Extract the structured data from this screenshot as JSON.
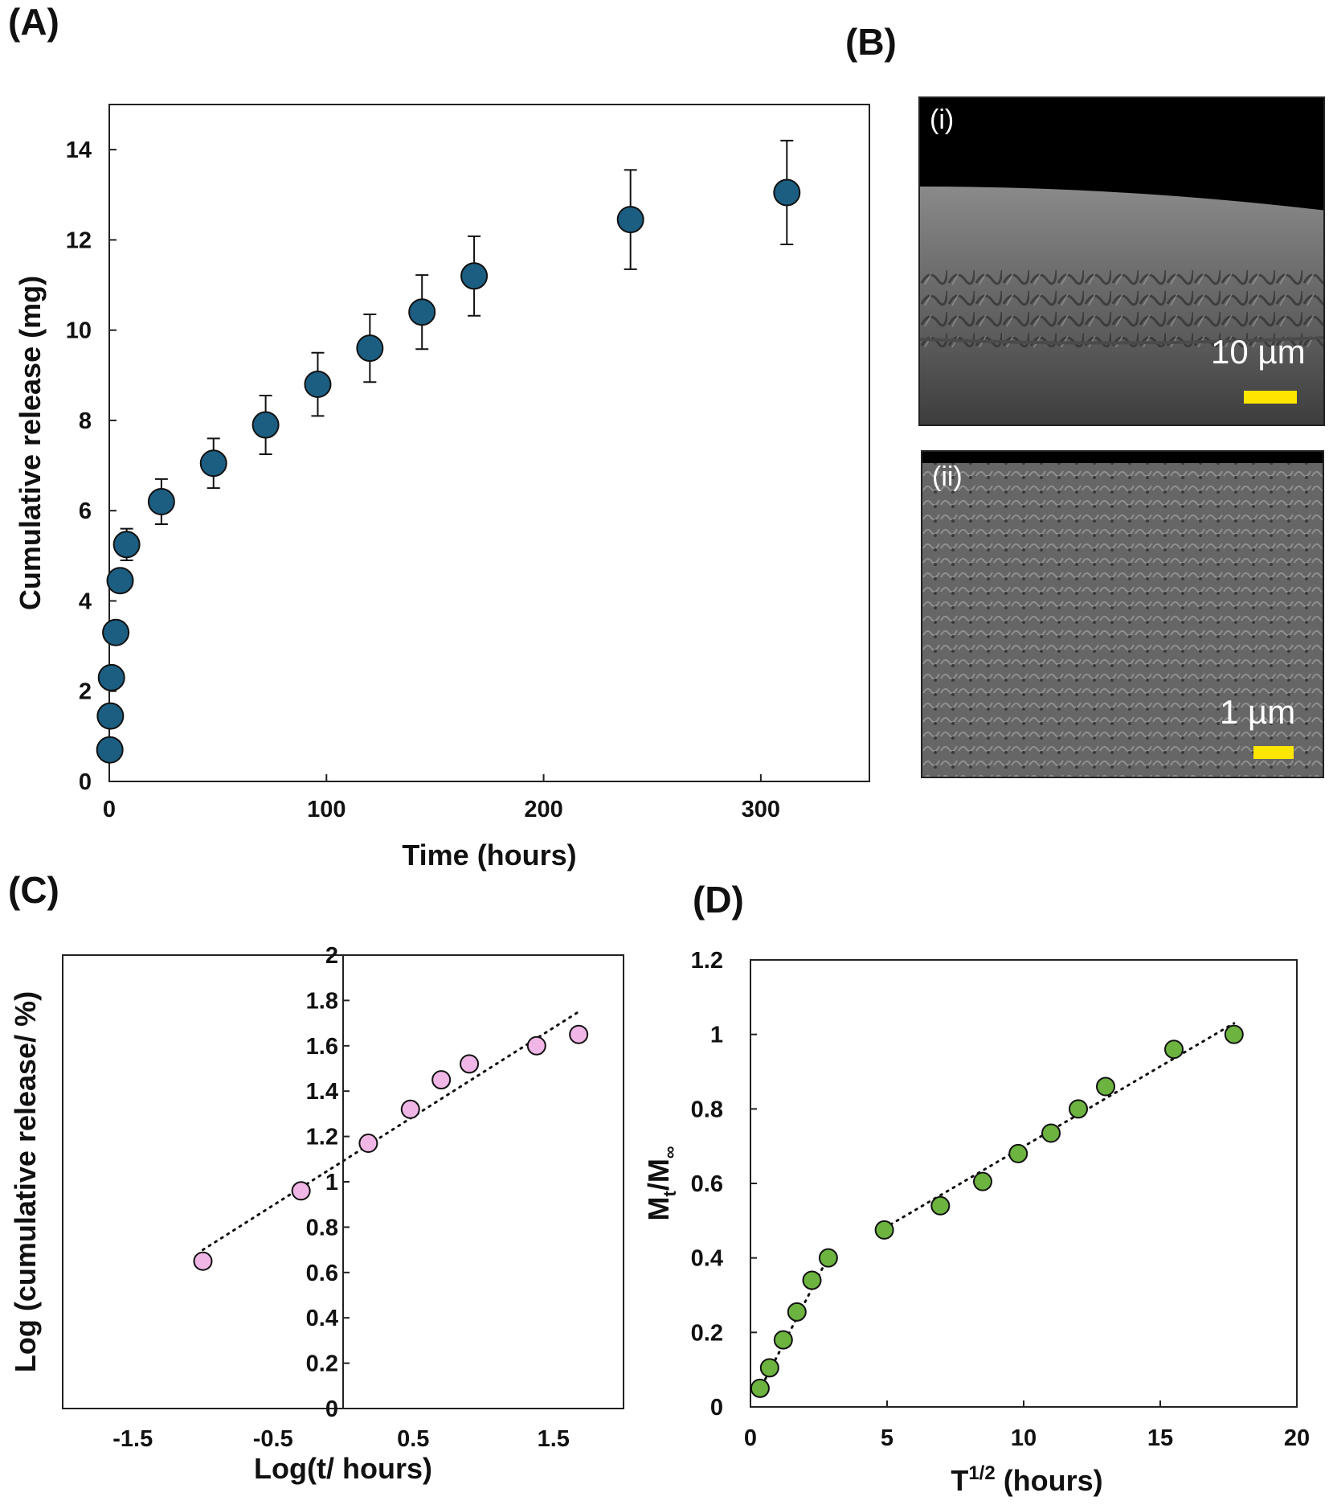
{
  "panels": {
    "a": "(A)",
    "b": "(B)",
    "c": "(C)",
    "d": "(D)"
  },
  "colors": {
    "panel_a_marker": "#1c5e82",
    "panel_c_marker": "#f0b6e6",
    "panel_d_marker": "#6cb33f",
    "scale_bar": "#ffe600"
  },
  "sem": {
    "image1": {
      "tag": "(i)",
      "scale_text": "10 µm"
    },
    "image2": {
      "tag": "(ii)",
      "scale_text": "1 µm"
    }
  },
  "chart_data": [
    {
      "id": "A",
      "type": "scatter",
      "xlabel": "Time (hours)",
      "ylabel": "Cumulative release (mg)",
      "xlim": [
        0,
        350
      ],
      "ylim": [
        0,
        15
      ],
      "xticks": [
        0,
        100,
        200,
        300
      ],
      "yticks": [
        0,
        2,
        4,
        6,
        8,
        10,
        12,
        14
      ],
      "grid": false,
      "series": [
        {
          "points": [
            {
              "x": 0.25,
              "y": 0.7,
              "err": 0
            },
            {
              "x": 0.5,
              "y": 1.45,
              "err": 0
            },
            {
              "x": 1,
              "y": 2.3,
              "err": 0
            },
            {
              "x": 3,
              "y": 3.3,
              "err": 0
            },
            {
              "x": 5,
              "y": 4.45,
              "err": 0
            },
            {
              "x": 8,
              "y": 5.25,
              "err": 0.35
            },
            {
              "x": 24,
              "y": 6.2,
              "err": 0.5
            },
            {
              "x": 48,
              "y": 7.05,
              "err": 0.55
            },
            {
              "x": 72,
              "y": 7.9,
              "err": 0.65
            },
            {
              "x": 96,
              "y": 8.8,
              "err": 0.7
            },
            {
              "x": 120,
              "y": 9.6,
              "err": 0.75
            },
            {
              "x": 144,
              "y": 10.4,
              "err": 0.82
            },
            {
              "x": 168,
              "y": 11.2,
              "err": 0.88
            },
            {
              "x": 240,
              "y": 12.45,
              "err": 1.1
            },
            {
              "x": 312,
              "y": 13.05,
              "err": 1.15
            }
          ]
        }
      ]
    },
    {
      "id": "C",
      "type": "scatter",
      "xlabel": "Log(t/ hours)",
      "ylabel": "Log (cumulative release/ %)",
      "xlim": [
        -2,
        2
      ],
      "ylim": [
        0,
        2
      ],
      "xticks": [
        "-1.5",
        "-0.5",
        "0.5",
        "1.5"
      ],
      "yticks": [
        "0",
        "0.2",
        "0.4",
        "0.6",
        "0.8",
        "1",
        "1.2",
        "1.4",
        "1.6",
        "1.8",
        "2"
      ],
      "grid": false,
      "trendline": {
        "style": "dotted",
        "from": [
          -1.0,
          0.7
        ],
        "to": [
          1.68,
          1.75
        ]
      },
      "series": [
        {
          "points": [
            {
              "x": -1.0,
              "y": 0.65
            },
            {
              "x": -0.3,
              "y": 0.96
            },
            {
              "x": 0.18,
              "y": 1.17
            },
            {
              "x": 0.48,
              "y": 1.32
            },
            {
              "x": 0.7,
              "y": 1.45
            },
            {
              "x": 0.9,
              "y": 1.52
            },
            {
              "x": 1.38,
              "y": 1.6
            },
            {
              "x": 1.68,
              "y": 1.65
            }
          ]
        }
      ]
    },
    {
      "id": "D",
      "type": "scatter",
      "xlabel": "T",
      "xlabel_sup": "1/2",
      "xlabel_rest": " (hours)",
      "ylabel": "M",
      "ylabel_sub1": "t",
      "ylabel_mid": "/M",
      "ylabel_sub2": "∞",
      "xlim": [
        0,
        20
      ],
      "ylim": [
        0,
        1.2
      ],
      "xticks": [
        "0",
        "5",
        "10",
        "15",
        "20"
      ],
      "yticks": [
        "0",
        "0.2",
        "0.4",
        "0.6",
        "0.8",
        "1",
        "1.2"
      ],
      "grid": false,
      "trendlines": [
        {
          "style": "dotted",
          "from": [
            0.3,
            0.04
          ],
          "to": [
            2.9,
            0.41
          ]
        },
        {
          "style": "dotted",
          "from": [
            4.9,
            0.48
          ],
          "to": [
            17.7,
            1.03
          ]
        }
      ],
      "series": [
        {
          "points": [
            {
              "x": 0.35,
              "y": 0.05
            },
            {
              "x": 0.7,
              "y": 0.105
            },
            {
              "x": 1.2,
              "y": 0.18
            },
            {
              "x": 1.7,
              "y": 0.255
            },
            {
              "x": 2.25,
              "y": 0.34
            },
            {
              "x": 2.85,
              "y": 0.4
            },
            {
              "x": 4.9,
              "y": 0.475
            },
            {
              "x": 6.95,
              "y": 0.54
            },
            {
              "x": 8.5,
              "y": 0.605
            },
            {
              "x": 9.8,
              "y": 0.68
            },
            {
              "x": 11.0,
              "y": 0.735
            },
            {
              "x": 12.0,
              "y": 0.8
            },
            {
              "x": 13.0,
              "y": 0.86
            },
            {
              "x": 15.5,
              "y": 0.96
            },
            {
              "x": 17.7,
              "y": 1.0
            }
          ]
        }
      ]
    }
  ]
}
